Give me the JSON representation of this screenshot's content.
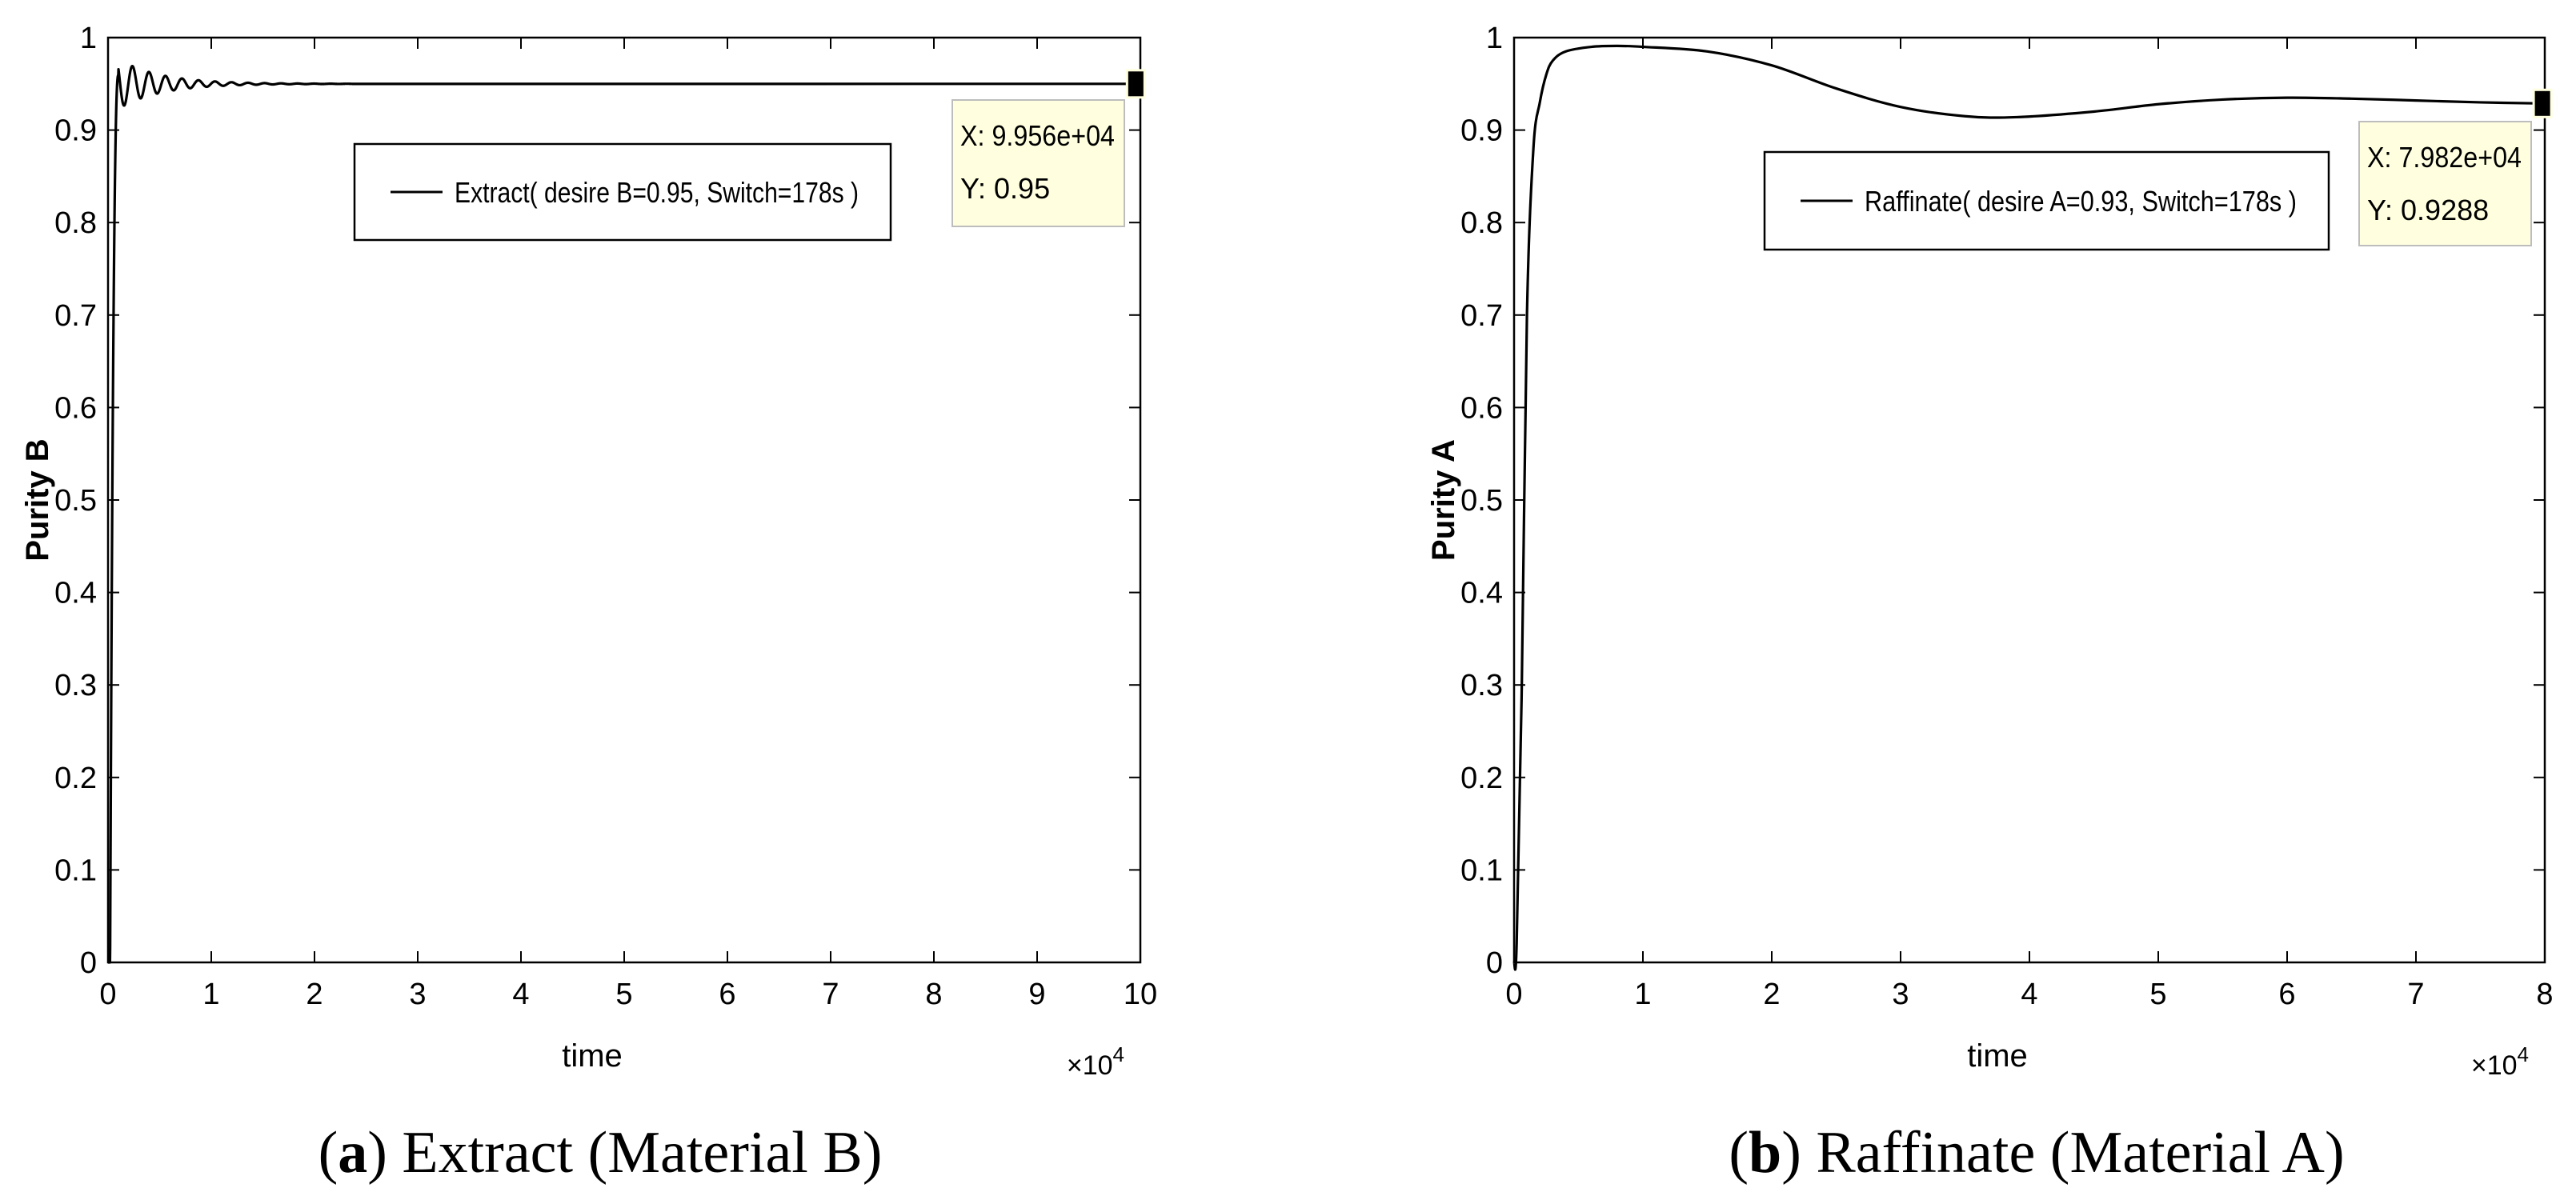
{
  "chart_data": [
    {
      "type": "line",
      "panel_label": "a",
      "caption": "Extract (Material B)",
      "xlabel": "time",
      "ylabel": "Purity B",
      "x_exponent_label": "×10",
      "x_exponent": "4",
      "xlim": [
        0,
        10
      ],
      "ylim": [
        0,
        1
      ],
      "xticks": [
        "0",
        "1",
        "2",
        "3",
        "4",
        "5",
        "6",
        "7",
        "8",
        "9",
        "10"
      ],
      "yticks": [
        "0",
        "0.1",
        "0.2",
        "0.3",
        "0.4",
        "0.5",
        "0.6",
        "0.7",
        "0.8",
        "0.9",
        "1"
      ],
      "x_units_scale": 10000,
      "series": [
        {
          "name": "Extract( desire B=0.95, Switch=178s )",
          "color": "#000000",
          "model": {
            "kind": "damped",
            "t_rise": 0.1,
            "final": 0.95,
            "amp": 0.027,
            "decay": 0.4,
            "period": 0.16,
            "start": 0.02
          },
          "x": [
            0,
            0.02,
            0.05,
            0.08,
            0.12,
            0.16,
            0.25,
            0.33,
            0.45,
            0.6,
            0.8,
            1.0,
            1.3,
            1.6,
            2.0,
            3,
            4,
            5,
            6,
            7,
            8,
            9,
            9.956
          ],
          "y": [
            0,
            0.0,
            0.5,
            0.85,
            0.96,
            0.975,
            0.92,
            0.975,
            0.925,
            0.97,
            0.93,
            0.962,
            0.94,
            0.955,
            0.95,
            0.95,
            0.95,
            0.95,
            0.95,
            0.95,
            0.95,
            0.95,
            0.95
          ]
        }
      ],
      "datatip": {
        "x_label": "X: 9.956e+04",
        "y_label": "Y: 0.95",
        "x": 9.956,
        "y": 0.95
      }
    },
    {
      "type": "line",
      "panel_label": "b",
      "caption": "Raffinate (Material A)",
      "xlabel": "time",
      "ylabel": "Purity A",
      "x_exponent_label": "×10",
      "x_exponent": "4",
      "xlim": [
        0,
        8
      ],
      "ylim": [
        0,
        1
      ],
      "xticks": [
        "0",
        "1",
        "2",
        "3",
        "4",
        "5",
        "6",
        "7",
        "8"
      ],
      "yticks": [
        "0",
        "0.1",
        "0.2",
        "0.3",
        "0.4",
        "0.5",
        "0.6",
        "0.7",
        "0.8",
        "0.9",
        "1"
      ],
      "x_units_scale": 10000,
      "series": [
        {
          "name": "Raffinate( desire A=0.93, Switch=178s )",
          "color": "#000000",
          "x": [
            0,
            0.02,
            0.06,
            0.1,
            0.15,
            0.2,
            0.25,
            0.3,
            0.4,
            0.6,
            0.8,
            1.0,
            1.5,
            2.0,
            2.5,
            3.0,
            3.5,
            3.9,
            4.5,
            5.0,
            5.5,
            6.0,
            6.5,
            7.0,
            7.5,
            7.982
          ],
          "y": [
            0,
            0.02,
            0.3,
            0.7,
            0.88,
            0.93,
            0.96,
            0.975,
            0.985,
            0.99,
            0.991,
            0.99,
            0.985,
            0.97,
            0.945,
            0.925,
            0.915,
            0.914,
            0.92,
            0.928,
            0.933,
            0.935,
            0.934,
            0.932,
            0.93,
            0.9288
          ]
        }
      ],
      "datatip": {
        "x_label": "X: 7.982e+04",
        "y_label": "Y: 0.9288",
        "x": 7.982,
        "y": 0.9288
      }
    }
  ]
}
